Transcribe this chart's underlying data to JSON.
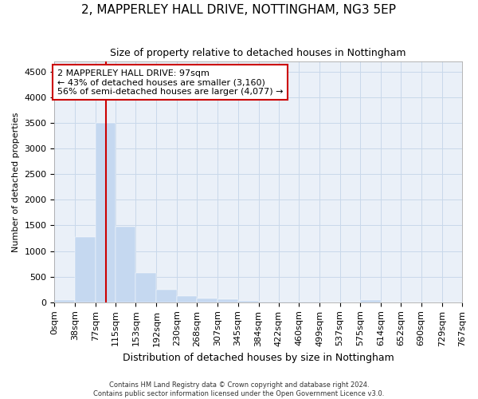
{
  "title": "2, MAPPERLEY HALL DRIVE, NOTTINGHAM, NG3 5EP",
  "subtitle": "Size of property relative to detached houses in Nottingham",
  "xlabel": "Distribution of detached houses by size in Nottingham",
  "ylabel": "Number of detached properties",
  "bar_color": "#c5d8f0",
  "bar_edgecolor": "#c5d8f0",
  "grid_color": "#c8d8ea",
  "background_color": "#eaf0f8",
  "vline_x": 97,
  "vline_color": "#cc0000",
  "annotation_line1": "2 MAPPERLEY HALL DRIVE: 97sqm",
  "annotation_line2": "← 43% of detached houses are smaller (3,160)",
  "annotation_line3": "56% of semi-detached houses are larger (4,077) →",
  "bin_edges": [
    0,
    38,
    77,
    115,
    153,
    192,
    230,
    268,
    307,
    345,
    384,
    422,
    460,
    499,
    537,
    575,
    614,
    652,
    690,
    729,
    767
  ],
  "bar_heights": [
    40,
    1270,
    3500,
    1480,
    570,
    250,
    120,
    80,
    60,
    35,
    20,
    10,
    5,
    0,
    0,
    50,
    0,
    0,
    0,
    0
  ],
  "ylim": [
    0,
    4700
  ],
  "yticks": [
    0,
    500,
    1000,
    1500,
    2000,
    2500,
    3000,
    3500,
    4000,
    4500
  ],
  "footer_line1": "Contains HM Land Registry data © Crown copyright and database right 2024.",
  "footer_line2": "Contains public sector information licensed under the Open Government Licence v3.0.",
  "title_fontsize": 11,
  "subtitle_fontsize": 9,
  "xlabel_fontsize": 9,
  "ylabel_fontsize": 8,
  "tick_fontsize": 8,
  "footer_fontsize": 6,
  "annot_fontsize": 8
}
